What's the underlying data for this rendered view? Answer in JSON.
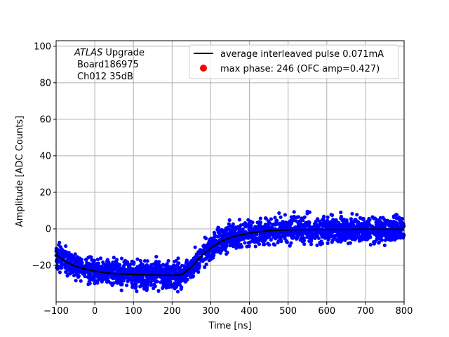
{
  "chart_data": {
    "type": "scatter",
    "xlabel": "Time [ns]",
    "ylabel": "Amplitude [ADC Counts]",
    "xlim": [
      -100,
      800
    ],
    "ylim": [
      -40,
      103
    ],
    "xticks": [
      -100,
      0,
      100,
      200,
      300,
      400,
      500,
      600,
      700,
      800
    ],
    "yticks": [
      -20,
      0,
      20,
      40,
      60,
      80,
      100
    ],
    "grid": true,
    "legend_position": "top-right",
    "annotation": {
      "line1_italic": "ATLAS",
      "line1_rest": " Upgrade",
      "line2": "Board186975",
      "line3": "Ch012 35dB"
    },
    "series": [
      {
        "name": "average interleaved pulse 0.071mA",
        "kind": "line",
        "color": "#000000",
        "x": [
          -100,
          -75,
          -50,
          -25,
          0,
          25,
          50,
          75,
          100,
          125,
          150,
          175,
          200,
          225,
          250,
          275,
          300,
          325,
          350,
          375,
          400,
          425,
          450,
          475,
          500,
          550,
          600,
          650,
          700,
          750,
          800
        ],
        "y": [
          -14,
          -18,
          -20.5,
          -22,
          -23.2,
          -24,
          -24.5,
          -24.8,
          -25,
          -25.2,
          -25.3,
          -25.4,
          -25.4,
          -25.2,
          -21,
          -15,
          -10.5,
          -7,
          -4.8,
          -3.4,
          -2.4,
          -1.6,
          -1.1,
          -0.8,
          -0.6,
          -0.4,
          -0.3,
          -0.3,
          -0.2,
          -0.2,
          -0.2
        ]
      },
      {
        "name": "max phase: 246 (OFC amp=0.427)",
        "kind": "marker",
        "color": "#ff0000"
      }
    ],
    "scatter_cloud": {
      "color": "#0000ff",
      "spread": 3.5
    }
  }
}
